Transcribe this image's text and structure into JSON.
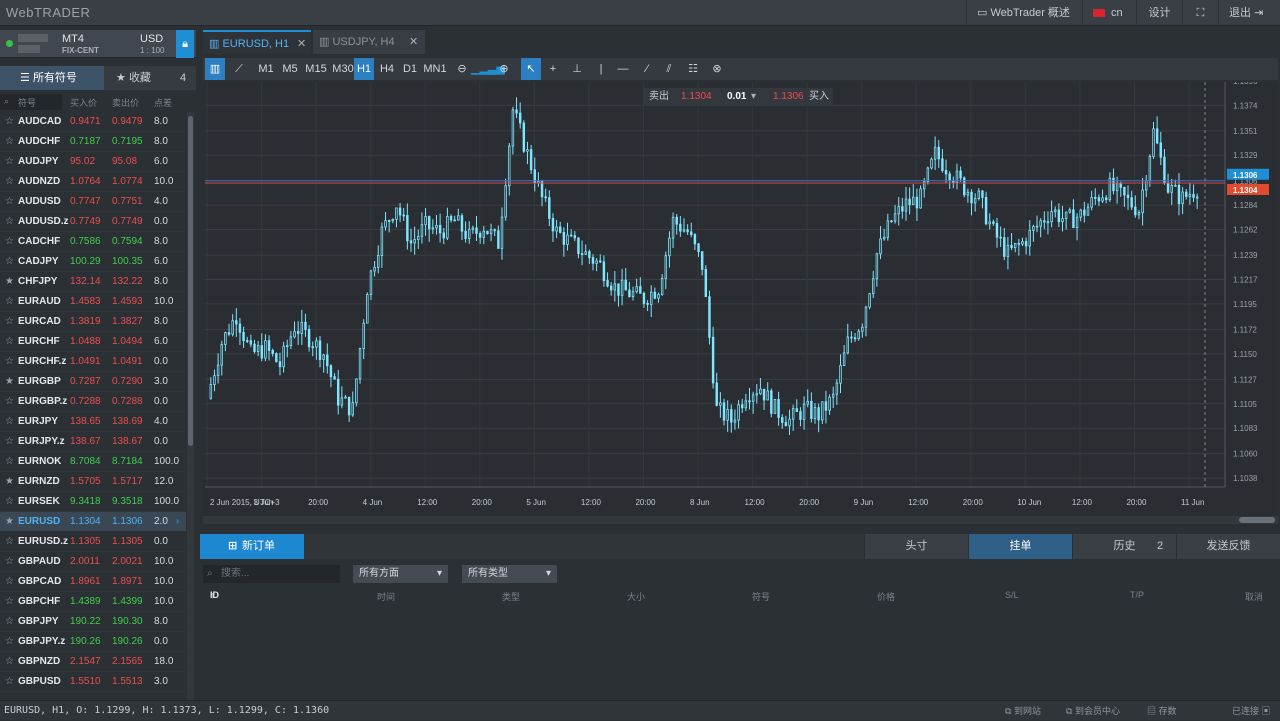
{
  "app": {
    "logo": "WebTRADER"
  },
  "topbar": {
    "overview": "WebTrader 概述",
    "lang": "cn",
    "design": "设计",
    "logout": "退出"
  },
  "account": {
    "platform": "MT4",
    "type": "FIX-CENT",
    "currency": "USD",
    "leverage": "1 : 100"
  },
  "leftTabs": {
    "all": "所有符号",
    "fav": "收藏",
    "fav_count": "4"
  },
  "symbolHeader": {
    "search": "符号",
    "bid": "买入价",
    "ask": "卖出价",
    "spread": "点差"
  },
  "symbols": [
    {
      "sym": "AUDCAD",
      "bid": "0.9471",
      "ask": "0.9479",
      "spr": "8.0",
      "dir": "red",
      "star": "☆"
    },
    {
      "sym": "AUDCHF",
      "bid": "0.7187",
      "ask": "0.7195",
      "spr": "8.0",
      "dir": "green",
      "star": "☆"
    },
    {
      "sym": "AUDJPY",
      "bid": "95.02",
      "ask": "95.08",
      "spr": "6.0",
      "dir": "red",
      "star": "☆"
    },
    {
      "sym": "AUDNZD",
      "bid": "1.0764",
      "ask": "1.0774",
      "spr": "10.0",
      "dir": "red",
      "star": "☆"
    },
    {
      "sym": "AUDUSD",
      "bid": "0.7747",
      "ask": "0.7751",
      "spr": "4.0",
      "dir": "red",
      "star": "☆"
    },
    {
      "sym": "AUDUSD.z",
      "bid": "0.7749",
      "ask": "0.7749",
      "spr": "0.0",
      "dir": "red",
      "star": "☆"
    },
    {
      "sym": "CADCHF",
      "bid": "0.7586",
      "ask": "0.7594",
      "spr": "8.0",
      "dir": "green",
      "star": "☆"
    },
    {
      "sym": "CADJPY",
      "bid": "100.29",
      "ask": "100.35",
      "spr": "6.0",
      "dir": "green",
      "star": "☆"
    },
    {
      "sym": "CHFJPY",
      "bid": "132.14",
      "ask": "132.22",
      "spr": "8.0",
      "dir": "red",
      "star": "★"
    },
    {
      "sym": "EURAUD",
      "bid": "1.4583",
      "ask": "1.4593",
      "spr": "10.0",
      "dir": "red",
      "star": "☆"
    },
    {
      "sym": "EURCAD",
      "bid": "1.3819",
      "ask": "1.3827",
      "spr": "8.0",
      "dir": "red",
      "star": "☆"
    },
    {
      "sym": "EURCHF",
      "bid": "1.0488",
      "ask": "1.0494",
      "spr": "6.0",
      "dir": "red",
      "star": "☆"
    },
    {
      "sym": "EURCHF.z",
      "bid": "1.0491",
      "ask": "1.0491",
      "spr": "0.0",
      "dir": "red",
      "star": "☆"
    },
    {
      "sym": "EURGBP",
      "bid": "0.7287",
      "ask": "0.7290",
      "spr": "3.0",
      "dir": "red",
      "star": "★"
    },
    {
      "sym": "EURGBP.z",
      "bid": "0.7288",
      "ask": "0.7288",
      "spr": "0.0",
      "dir": "red",
      "star": "☆"
    },
    {
      "sym": "EURJPY",
      "bid": "138.65",
      "ask": "138.69",
      "spr": "4.0",
      "dir": "red",
      "star": "☆"
    },
    {
      "sym": "EURJPY.z",
      "bid": "138.67",
      "ask": "138.67",
      "spr": "0.0",
      "dir": "red",
      "star": "☆"
    },
    {
      "sym": "EURNOK",
      "bid": "8.7084",
      "ask": "8.7184",
      "spr": "100.0",
      "dir": "green",
      "star": "☆"
    },
    {
      "sym": "EURNZD",
      "bid": "1.5705",
      "ask": "1.5717",
      "spr": "12.0",
      "dir": "red",
      "star": "★"
    },
    {
      "sym": "EURSEK",
      "bid": "9.3418",
      "ask": "9.3518",
      "spr": "100.0",
      "dir": "green",
      "star": "☆"
    },
    {
      "sym": "EURUSD",
      "bid": "1.1304",
      "ask": "1.1306",
      "spr": "2.0",
      "dir": "sel",
      "star": "★"
    },
    {
      "sym": "EURUSD.z",
      "bid": "1.1305",
      "ask": "1.1305",
      "spr": "0.0",
      "dir": "red",
      "star": "☆"
    },
    {
      "sym": "GBPAUD",
      "bid": "2.0011",
      "ask": "2.0021",
      "spr": "10.0",
      "dir": "red",
      "star": "☆"
    },
    {
      "sym": "GBPCAD",
      "bid": "1.8961",
      "ask": "1.8971",
      "spr": "10.0",
      "dir": "red",
      "star": "☆"
    },
    {
      "sym": "GBPCHF",
      "bid": "1.4389",
      "ask": "1.4399",
      "spr": "10.0",
      "dir": "green",
      "star": "☆"
    },
    {
      "sym": "GBPJPY",
      "bid": "190.22",
      "ask": "190.30",
      "spr": "8.0",
      "dir": "green",
      "star": "☆"
    },
    {
      "sym": "GBPJPY.z",
      "bid": "190.26",
      "ask": "190.26",
      "spr": "0.0",
      "dir": "green",
      "star": "☆"
    },
    {
      "sym": "GBPNZD",
      "bid": "2.1547",
      "ask": "2.1565",
      "spr": "18.0",
      "dir": "red",
      "star": "☆"
    },
    {
      "sym": "GBPUSD",
      "bid": "1.5510",
      "ask": "1.5513",
      "spr": "3.0",
      "dir": "red",
      "star": "☆"
    }
  ],
  "chartTabs": [
    {
      "label": "EURUSD, H1",
      "active": true
    },
    {
      "label": "USDJPY, H4",
      "active": false
    }
  ],
  "timeframes": [
    "M1",
    "M5",
    "M15",
    "M30",
    "H1",
    "H4",
    "D1",
    "MN1"
  ],
  "activeTimeframe": "H1",
  "trade": {
    "sell_label": "卖出",
    "sell_price": "1.1304",
    "lot": "0.01",
    "buy_price": "1.1306",
    "buy_label": "买入"
  },
  "chart_data": {
    "type": "candlestick",
    "symbol": "EURUSD",
    "timeframe": "H1",
    "ylim": [
      1.103,
      1.1395
    ],
    "yticks": [
      "1.1396",
      "1.1374",
      "1.1351",
      "1.1329",
      "1.1306",
      "1.1284",
      "1.1262",
      "1.1239",
      "1.1217",
      "1.1195",
      "1.1172",
      "1.1150",
      "1.1127",
      "1.1105",
      "1.1083",
      "1.1060",
      "1.1038"
    ],
    "xticks": [
      "2 Jun 2015, UTC+3",
      "3 Jun",
      "20:00",
      "4 Jun",
      "12:00",
      "20:00",
      "5 Jun",
      "12:00",
      "20:00",
      "8 Jun",
      "12:00",
      "20:00",
      "9 Jun",
      "12:00",
      "20:00",
      "10 Jun",
      "12:00",
      "20:00",
      "11 Jun"
    ],
    "bid_line": "1.1304",
    "ask_line": "1.1306",
    "close_path": [
      1.111,
      1.116,
      1.1185,
      1.115,
      1.1155,
      1.114,
      1.1175,
      1.1165,
      1.115,
      1.111,
      1.11,
      1.121,
      1.126,
      1.1285,
      1.125,
      1.1265,
      1.126,
      1.127,
      1.1255,
      1.1265,
      1.125,
      1.137,
      1.133,
      1.129,
      1.126,
      1.125,
      1.124,
      1.123,
      1.121,
      1.1205,
      1.12,
      1.121,
      1.127,
      1.126,
      1.123,
      1.11,
      1.109,
      1.1115,
      1.112,
      1.11,
      1.109,
      1.11,
      1.1095,
      1.111,
      1.116,
      1.118,
      1.124,
      1.127,
      1.1285,
      1.129,
      1.133,
      1.1315,
      1.13,
      1.129,
      1.126,
      1.124,
      1.125,
      1.1265,
      1.128,
      1.127,
      1.1275,
      1.129,
      1.13,
      1.129,
      1.128,
      1.135,
      1.13,
      1.129,
      1.13
    ]
  },
  "bottomTabs": {
    "new_order": "新订单",
    "positions": "头寸",
    "pending": "挂单",
    "history": "历史",
    "history_count": "2",
    "feedback": "发送反馈"
  },
  "filters": {
    "search_placeholder": "搜索...",
    "direction": "所有方面",
    "type": "所有类型"
  },
  "columns": [
    "ID",
    "时间",
    "类型",
    "大小",
    "符号",
    "价格",
    "S/L",
    "T/P",
    "取消"
  ],
  "status": {
    "text": "EURUSD, H1, O: 1.1299,  H: 1.1373,  L: 1.1299,  C: 1.1360",
    "website": "到网站",
    "member": "到会员中心",
    "save": "存数",
    "connected": "已连接"
  }
}
